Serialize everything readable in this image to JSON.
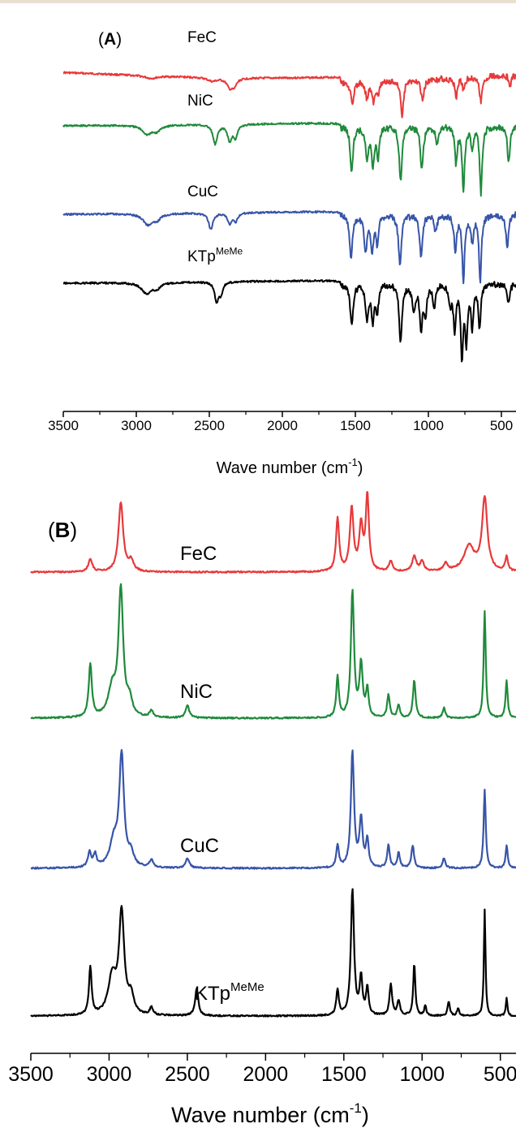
{
  "chart_data": [
    {
      "type": "line",
      "panel_label": "A",
      "xlabel": "Wave number (cm",
      "xlabel_sup": "-1",
      "xlabel_close": ")",
      "xlim": [
        3500,
        400
      ],
      "x_reversed": true,
      "xticks": [
        3500,
        3000,
        2500,
        2000,
        1500,
        1000,
        500
      ],
      "grid": false,
      "series": [
        {
          "name": "FeC",
          "name_sup": "",
          "color": "#e8393a",
          "offset": 0,
          "baseline": 0.08,
          "peaks": [
            [
              2900,
              0.03,
              50
            ],
            [
              2480,
              0.04,
              40
            ],
            [
              2360,
              0.1,
              25
            ],
            [
              2330,
              0.08,
              20
            ],
            [
              1520,
              0.28,
              12
            ],
            [
              1420,
              0.18,
              12
            ],
            [
              1375,
              0.22,
              12
            ],
            [
              1345,
              0.15,
              10
            ],
            [
              1180,
              0.38,
              12
            ],
            [
              1040,
              0.24,
              12
            ],
            [
              810,
              0.22,
              10
            ],
            [
              760,
              0.12,
              10
            ],
            [
              640,
              0.28,
              12
            ],
            [
              440,
              0.12,
              10
            ]
          ]
        },
        {
          "name": "NiC",
          "name_sup": "",
          "color": "#1f8a3b",
          "offset": 1,
          "baseline": 0.0,
          "peaks": [
            [
              2925,
              0.1,
              40
            ],
            [
              2860,
              0.06,
              30
            ],
            [
              2460,
              0.22,
              18
            ],
            [
              2360,
              0.18,
              18
            ],
            [
              2320,
              0.14,
              16
            ],
            [
              1525,
              0.5,
              12
            ],
            [
              1420,
              0.36,
              12
            ],
            [
              1380,
              0.42,
              12
            ],
            [
              1345,
              0.32,
              10
            ],
            [
              1190,
              0.6,
              12
            ],
            [
              1045,
              0.48,
              12
            ],
            [
              940,
              0.18,
              12
            ],
            [
              810,
              0.4,
              10
            ],
            [
              760,
              0.72,
              10
            ],
            [
              700,
              0.25,
              10
            ],
            [
              640,
              0.75,
              10
            ],
            [
              450,
              0.42,
              10
            ]
          ]
        },
        {
          "name": "CuC",
          "name_sup": "",
          "color": "#3754a8",
          "offset": 2,
          "baseline": 0.0,
          "peaks": [
            [
              2920,
              0.12,
              40
            ],
            [
              2860,
              0.06,
              30
            ],
            [
              2490,
              0.18,
              18
            ],
            [
              2360,
              0.12,
              18
            ],
            [
              2320,
              0.09,
              16
            ],
            [
              1530,
              0.48,
              12
            ],
            [
              1430,
              0.4,
              12
            ],
            [
              1385,
              0.4,
              12
            ],
            [
              1350,
              0.3,
              10
            ],
            [
              1195,
              0.56,
              12
            ],
            [
              1050,
              0.46,
              12
            ],
            [
              950,
              0.18,
              12
            ],
            [
              815,
              0.42,
              10
            ],
            [
              760,
              0.75,
              10
            ],
            [
              700,
              0.3,
              10
            ],
            [
              645,
              0.72,
              10
            ],
            [
              460,
              0.38,
              10
            ]
          ]
        },
        {
          "name": "KTp",
          "name_sup": "MeMe",
          "color": "#000000",
          "offset": 3,
          "baseline": 0.0,
          "peaks": [
            [
              2930,
              0.12,
              40
            ],
            [
              2860,
              0.06,
              30
            ],
            [
              2450,
              0.22,
              16
            ],
            [
              2420,
              0.12,
              14
            ],
            [
              1525,
              0.48,
              12
            ],
            [
              1420,
              0.4,
              12
            ],
            [
              1380,
              0.4,
              12
            ],
            [
              1350,
              0.3,
              10
            ],
            [
              1190,
              0.64,
              12
            ],
            [
              1100,
              0.3,
              12
            ],
            [
              1050,
              0.48,
              12
            ],
            [
              1020,
              0.34,
              10
            ],
            [
              960,
              0.28,
              10
            ],
            [
              850,
              0.22,
              10
            ],
            [
              820,
              0.5,
              10
            ],
            [
              770,
              0.78,
              10
            ],
            [
              740,
              0.6,
              10
            ],
            [
              700,
              0.46,
              10
            ],
            [
              650,
              0.5,
              10
            ],
            [
              450,
              0.24,
              10
            ]
          ]
        }
      ]
    },
    {
      "type": "line",
      "panel_label": "B",
      "xlabel": "Wave number (cm",
      "xlabel_sup": "-1",
      "xlabel_close": ")",
      "xlim": [
        3500,
        400
      ],
      "x_reversed": true,
      "xticks": [
        3500,
        3000,
        2500,
        2000,
        1500,
        1000,
        500
      ],
      "grid": false,
      "series": [
        {
          "name": "FeC",
          "name_sup": "",
          "color": "#e8393a",
          "offset": 0,
          "peaks": [
            [
              3120,
              0.1,
              15
            ],
            [
              2925,
              0.55,
              18
            ],
            [
              2860,
              0.08,
              20
            ],
            [
              1540,
              0.42,
              12
            ],
            [
              1450,
              0.5,
              14
            ],
            [
              1390,
              0.35,
              14
            ],
            [
              1350,
              0.6,
              12
            ],
            [
              1200,
              0.08,
              14
            ],
            [
              1050,
              0.12,
              16
            ],
            [
              1000,
              0.08,
              14
            ],
            [
              850,
              0.06,
              16
            ],
            [
              700,
              0.2,
              40
            ],
            [
              600,
              0.58,
              20
            ],
            [
              460,
              0.12,
              10
            ]
          ]
        },
        {
          "name": "NiC",
          "name_sup": "",
          "color": "#1f8a3b",
          "offset": 1,
          "peaks": [
            [
              3120,
              0.42,
              12
            ],
            [
              2925,
              1.0,
              18
            ],
            [
              2980,
              0.22,
              30
            ],
            [
              2870,
              0.12,
              20
            ],
            [
              2730,
              0.05,
              14
            ],
            [
              2500,
              0.1,
              14
            ],
            [
              1540,
              0.32,
              10
            ],
            [
              1445,
              1.0,
              12
            ],
            [
              1390,
              0.42,
              12
            ],
            [
              1350,
              0.22,
              10
            ],
            [
              1215,
              0.18,
              10
            ],
            [
              1150,
              0.1,
              10
            ],
            [
              1050,
              0.3,
              10
            ],
            [
              860,
              0.08,
              10
            ],
            [
              600,
              0.85,
              8
            ],
            [
              460,
              0.3,
              8
            ]
          ]
        },
        {
          "name": "CuC",
          "name_sup": "",
          "color": "#3754a8",
          "offset": 2,
          "peaks": [
            [
              3125,
              0.12,
              12
            ],
            [
              3090,
              0.1,
              12
            ],
            [
              2920,
              0.88,
              18
            ],
            [
              2970,
              0.2,
              30
            ],
            [
              2860,
              0.1,
              20
            ],
            [
              2730,
              0.06,
              14
            ],
            [
              2500,
              0.08,
              14
            ],
            [
              1540,
              0.18,
              10
            ],
            [
              1445,
              0.92,
              12
            ],
            [
              1390,
              0.38,
              12
            ],
            [
              1350,
              0.22,
              10
            ],
            [
              1215,
              0.18,
              10
            ],
            [
              1150,
              0.12,
              10
            ],
            [
              1060,
              0.18,
              10
            ],
            [
              860,
              0.08,
              10
            ],
            [
              600,
              0.62,
              8
            ],
            [
              460,
              0.18,
              8
            ]
          ]
        },
        {
          "name": "KTp",
          "name_sup": "MeMe",
          "color": "#000000",
          "offset": 3,
          "peaks": [
            [
              3120,
              0.38,
              10
            ],
            [
              2920,
              0.8,
              20
            ],
            [
              2980,
              0.3,
              30
            ],
            [
              2860,
              0.14,
              20
            ],
            [
              2730,
              0.06,
              12
            ],
            [
              2440,
              0.22,
              12
            ],
            [
              1540,
              0.2,
              10
            ],
            [
              1445,
              1.0,
              12
            ],
            [
              1390,
              0.3,
              10
            ],
            [
              1350,
              0.22,
              10
            ],
            [
              1200,
              0.25,
              10
            ],
            [
              1150,
              0.12,
              10
            ],
            [
              1050,
              0.42,
              8
            ],
            [
              980,
              0.08,
              8
            ],
            [
              830,
              0.12,
              8
            ],
            [
              770,
              0.06,
              8
            ],
            [
              600,
              0.85,
              6
            ],
            [
              460,
              0.14,
              6
            ]
          ]
        }
      ]
    }
  ]
}
